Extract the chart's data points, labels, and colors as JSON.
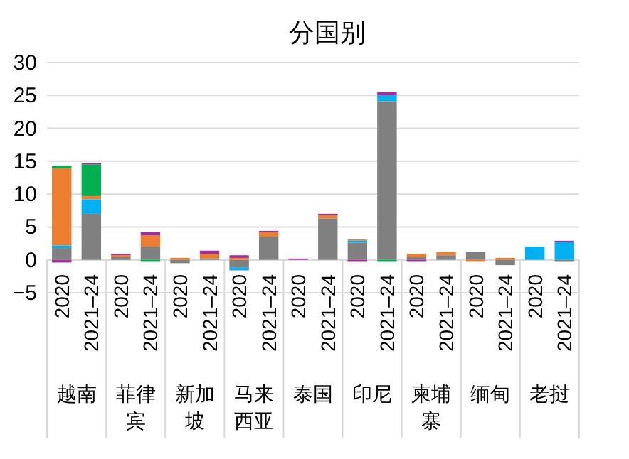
{
  "chart_data": {
    "type": "bar",
    "title": "分国别",
    "stacked": true,
    "grid": "y",
    "categories": [
      "2020",
      "2021–24",
      "2020",
      "2021–24",
      "2020",
      "2021–24",
      "2020",
      "2021–24",
      "2020",
      "2021–24",
      "2020",
      "2021–24",
      "2020",
      "2021–24",
      "2020",
      "2021–24",
      "2020",
      "2021–24"
    ],
    "annotations": [
      "越南",
      "菲律宾",
      "新加坡",
      "马来西亚",
      "泰国",
      "印尼",
      "柬埔寨",
      "缅甸",
      "老挝"
    ],
    "ylim": [
      -5,
      30
    ],
    "yticks": [
      -5,
      0,
      5,
      10,
      15,
      20,
      25,
      30
    ],
    "series": [
      {
        "color": "#808080",
        "values": [
          1.8,
          7.0,
          0.4,
          2.0,
          -0.5,
          0.2,
          -1.2,
          3.5,
          null,
          6.3,
          2.6,
          24.1,
          0.4,
          0.7,
          1.2,
          -0.8,
          null,
          -0.3
        ]
      },
      {
        "color": "#00b0f0",
        "values": [
          0.4,
          2.2,
          null,
          null,
          null,
          null,
          -0.4,
          null,
          null,
          null,
          0.3,
          0.9,
          null,
          null,
          null,
          null,
          2.0,
          2.7
        ]
      },
      {
        "color": "#ed7d31",
        "values": [
          11.7,
          0.5,
          0.3,
          1.7,
          0.3,
          0.7,
          0.3,
          0.7,
          null,
          0.5,
          0.2,
          null,
          0.5,
          0.5,
          -0.3,
          0.3,
          null,
          null
        ]
      },
      {
        "color": "#00b050",
        "values": [
          0.4,
          4.8,
          null,
          -0.3,
          null,
          null,
          null,
          null,
          null,
          null,
          null,
          -0.3,
          null,
          null,
          null,
          null,
          null,
          null
        ]
      },
      {
        "color": "#a0309a",
        "values": [
          -0.4,
          0.2,
          0.2,
          0.5,
          null,
          0.5,
          0.4,
          0.2,
          0.2,
          0.2,
          -0.3,
          0.5,
          -0.3,
          null,
          null,
          null,
          null,
          0.2
        ]
      }
    ]
  }
}
